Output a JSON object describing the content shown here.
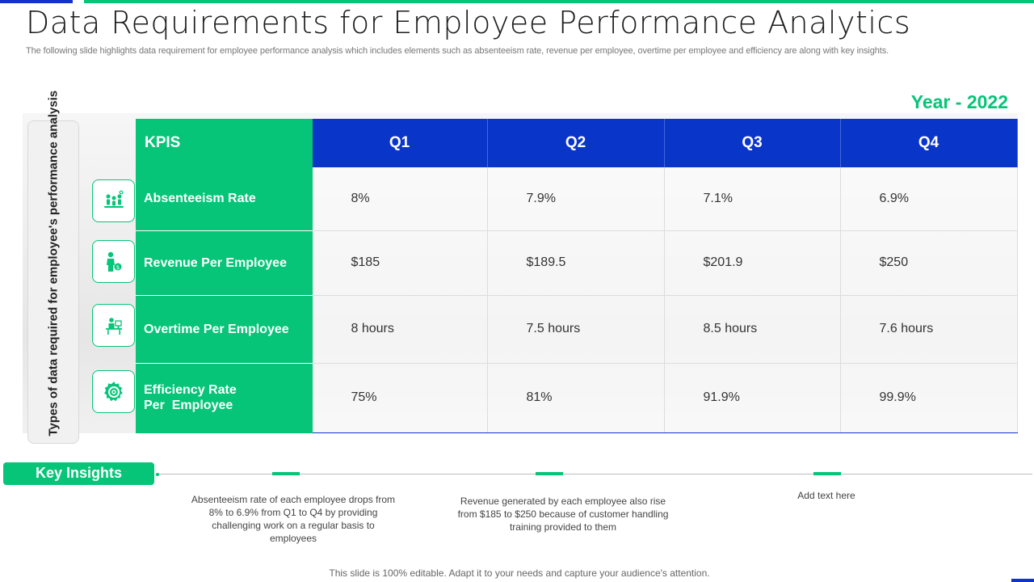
{
  "page": {
    "title": "Data Requirements for Employee Performance Analytics",
    "subtitle": "The following slide highlights data requirement for employee performance analysis which includes elements such as absenteeism rate, revenue per employee, overtime per employee and efficiency are along with key insights.",
    "year": "Year - 2022",
    "side_label": "Types of data required for employee's performance analysis"
  },
  "table": {
    "headers": [
      "KPIS",
      "Q1",
      "Q2",
      "Q3",
      "Q4"
    ],
    "rows": [
      {
        "kpi": "Absenteeism Rate",
        "icon": "team-meeting-icon",
        "values": [
          "8%",
          "7.9%",
          "7.1%",
          "6.9%"
        ]
      },
      {
        "kpi": "Revenue Per Employee",
        "icon": "employee-money-icon",
        "values": [
          "$185",
          "$189.5",
          "$201.9",
          "$250"
        ]
      },
      {
        "kpi": "Overtime Per Employee",
        "icon": "employee-desk-icon",
        "values": [
          "8 hours",
          "7.5 hours",
          "8.5 hours",
          "7.6 hours"
        ]
      },
      {
        "kpi": "Efficiency Rate Per  Employee",
        "icon": "gear-target-icon",
        "values": [
          "75%",
          "81%",
          "91.9%",
          "99.9%"
        ]
      }
    ]
  },
  "insights": {
    "label": "Key Insights",
    "items": [
      "Absenteeism rate of each employee drops from 8% to 6.9% from Q1 to Q4 by providing  challenging work on a regular basis to employees",
      "Revenue  generated  by each employee also rise from $185 to $250 because of customer handling training provided to them",
      "Add text here"
    ]
  },
  "footer": "This slide is 100% editable. Adapt it to your needs and capture your audience's attention.",
  "colors": {
    "green": "#06c478",
    "blue": "#0a35c9"
  }
}
